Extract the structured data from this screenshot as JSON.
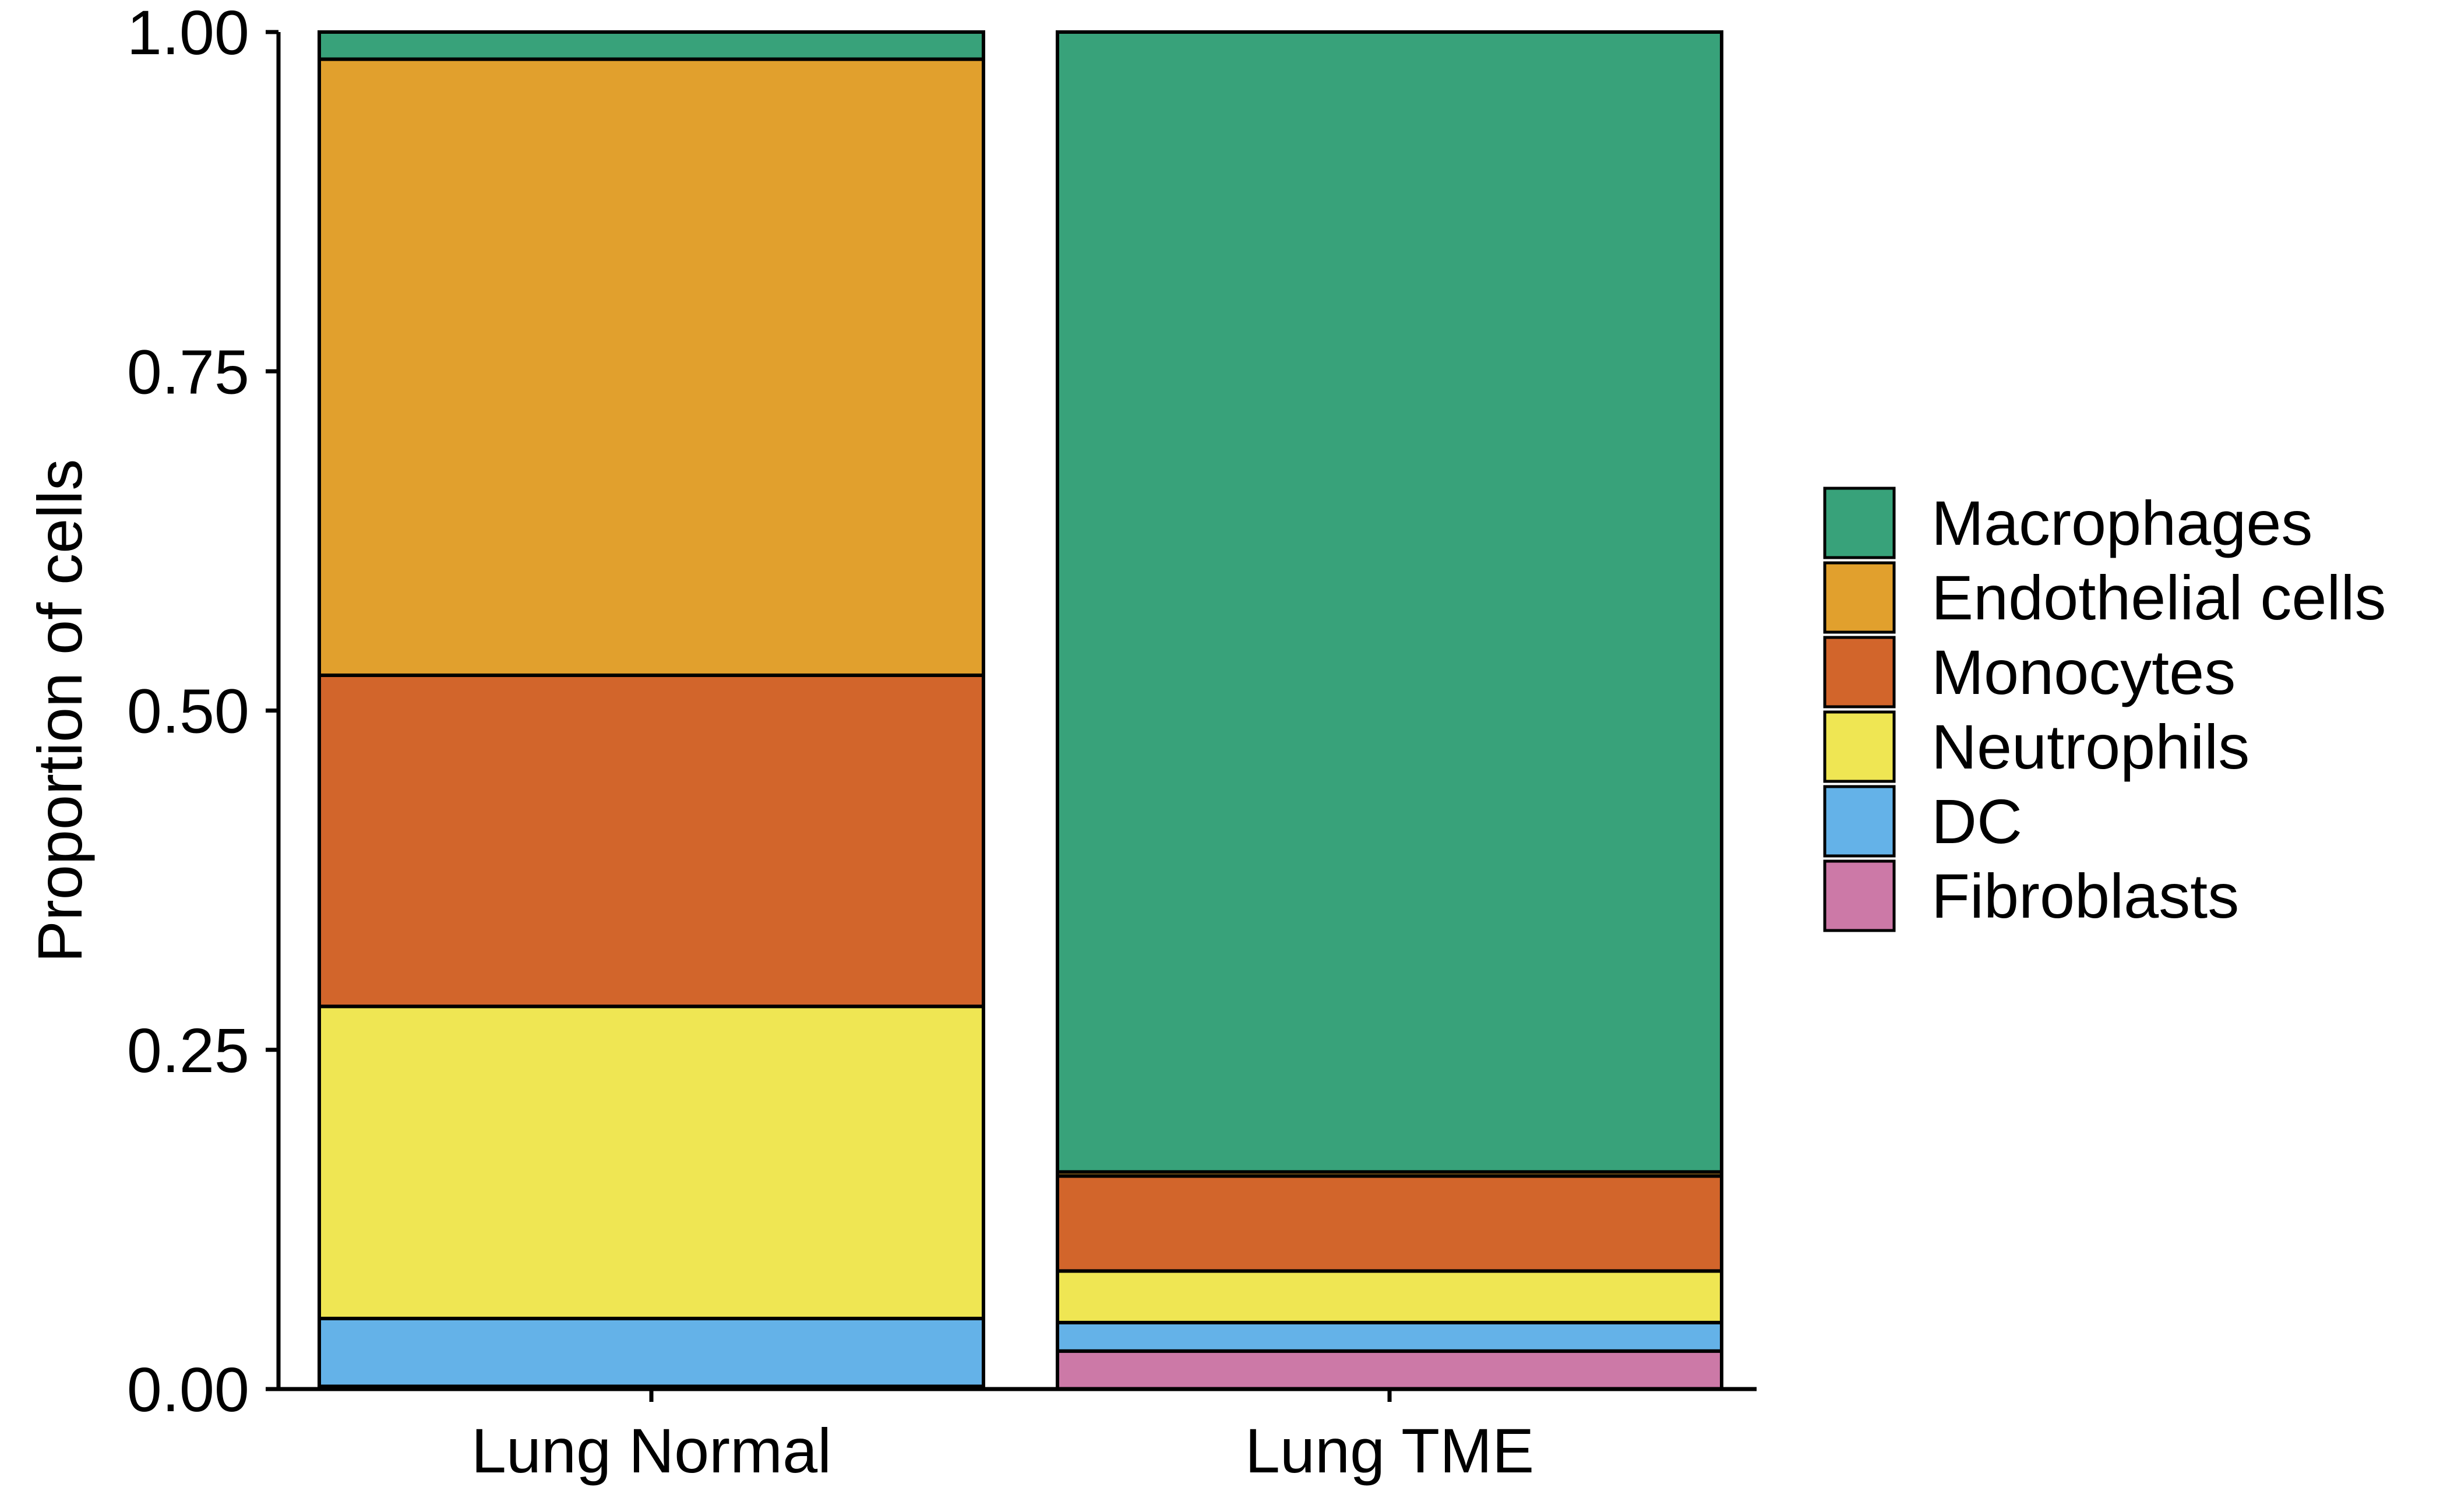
{
  "chart_data": {
    "type": "bar",
    "stacked": true,
    "xlabel": "",
    "ylabel": "Proportion of cells",
    "ylim": [
      0,
      1
    ],
    "yticks": [
      "0.00",
      "0.25",
      "0.50",
      "0.75",
      "1.00"
    ],
    "yticks_values": [
      0,
      0.25,
      0.5,
      0.75,
      1.0
    ],
    "categories": [
      "Lung Normal",
      "Lung TME"
    ],
    "series": [
      {
        "name": "Macrophages",
        "color": "#38a27a",
        "values": [
          0.02,
          0.84
        ]
      },
      {
        "name": "Endothelial cells",
        "color": "#e1a02d",
        "values": [
          0.454,
          0.003
        ]
      },
      {
        "name": "Monocytes",
        "color": "#d2652b",
        "values": [
          0.244,
          0.07
        ]
      },
      {
        "name": "Neutrophils",
        "color": "#efe653",
        "values": [
          0.23,
          0.038
        ]
      },
      {
        "name": "DC",
        "color": "#64b2e8",
        "values": [
          0.05,
          0.021
        ]
      },
      {
        "name": "Fibroblasts",
        "color": "#cc79a7",
        "values": [
          0.002,
          0.028
        ]
      }
    ],
    "legend_position": "right",
    "grid": false
  }
}
